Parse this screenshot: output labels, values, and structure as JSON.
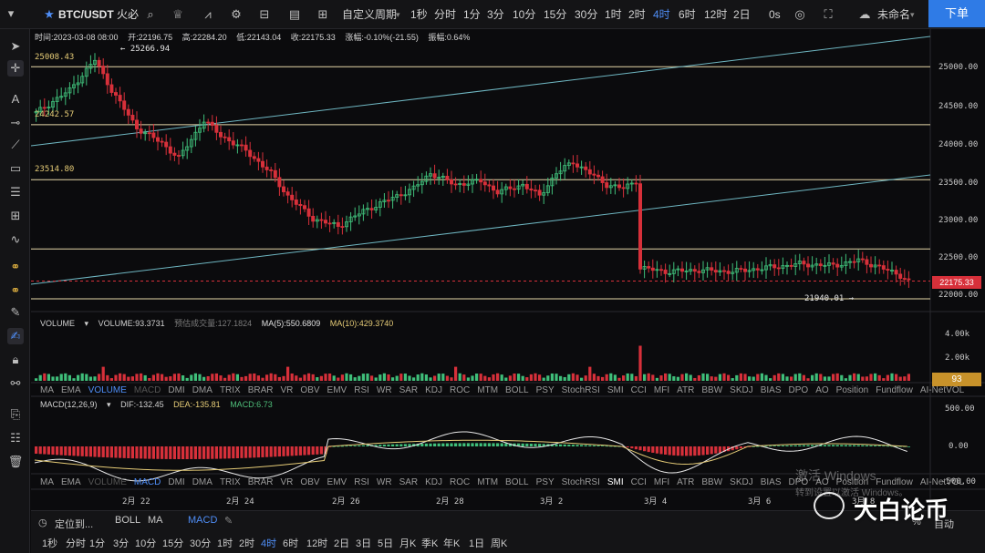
{
  "topbar": {
    "symbol": "BTC/USDT",
    "exchange": "火必",
    "custom_period": "自定义周期",
    "periods": [
      "1秒",
      "分时",
      "1分",
      "3分",
      "10分",
      "15分",
      "30分",
      "1时",
      "2时",
      "4时",
      "6时",
      "12时",
      "2日"
    ],
    "active_period": "4时",
    "countdown": "0s",
    "layout_name": "未命名",
    "order_button": "下单",
    "colors": {
      "active": "#4f8ef7",
      "order": "#2f7be6"
    }
  },
  "ohlc_info": {
    "time": "时间:2023-03-08 08:00",
    "open": "开:22196.75",
    "high": "高:22284.20",
    "low": "低:22143.04",
    "close": "收:22175.33",
    "change": "涨幅:-0.10%(-21.55)",
    "amplitude": "振幅:0.64%"
  },
  "price_axis": [
    "25000.00",
    "24500.00",
    "24000.00",
    "23500.00",
    "23000.00",
    "22500.00",
    "22000.00"
  ],
  "current_price": "22175.33",
  "annotations": {
    "high_mark": "← 25266.94",
    "low_mark": "21940.01 →",
    "levels": [
      "25008.43",
      "24242.57",
      "23514.80"
    ]
  },
  "volume": {
    "label": "VOLUME",
    "value": "VOLUME:93.3731",
    "predicted": "预估成交量:127.1824",
    "ma5": "MA(5):550.6809",
    "ma10": "MA(10):429.3740",
    "axis": [
      "4.00k",
      "2.00k"
    ],
    "current": "93"
  },
  "indicator_tabs": [
    "MA",
    "EMA",
    "VOLUME",
    "MACD",
    "DMI",
    "DMA",
    "TRIX",
    "BRAR",
    "VR",
    "OBV",
    "EMV",
    "RSI",
    "WR",
    "SAR",
    "KDJ",
    "ROC",
    "MTM",
    "BOLL",
    "PSY",
    "StochRSI",
    "SMI",
    "CCI",
    "MFI",
    "ATR",
    "BBW",
    "SKDJ",
    "BIAS",
    "DPO",
    "AO",
    "Position",
    "Fundflow",
    "AI-NetVOL"
  ],
  "macd": {
    "label": "MACD(12,26,9)",
    "dif": "DIF:-132.45",
    "dea": "DEA:-135.81",
    "macd": "MACD:6.73",
    "axis": [
      "500.00",
      "0.00",
      "-500.00"
    ]
  },
  "date_axis": [
    "2月 22",
    "2月 24",
    "2月 26",
    "2月 28",
    "3月 2",
    "3月 4",
    "3月 6",
    "3月 8"
  ],
  "bottombar": {
    "locate": "定位到...",
    "overlay_tabs": [
      "BOLL",
      "MA"
    ],
    "sub_tab": "MACD",
    "periods": [
      "1秒",
      "分时",
      "1分",
      "3分",
      "10分",
      "15分",
      "30分",
      "1时",
      "2时",
      "4时",
      "6时",
      "12时",
      "2日",
      "3日",
      "5日",
      "月K",
      "季K",
      "年K",
      "1日",
      "周K"
    ],
    "active_period": "4时",
    "pct": "%",
    "auto": "自动"
  },
  "watermark": {
    "activate": "激活 Windows",
    "activate_sub": "转到设置以激活 Windows。",
    "brand": "大白论币"
  }
}
